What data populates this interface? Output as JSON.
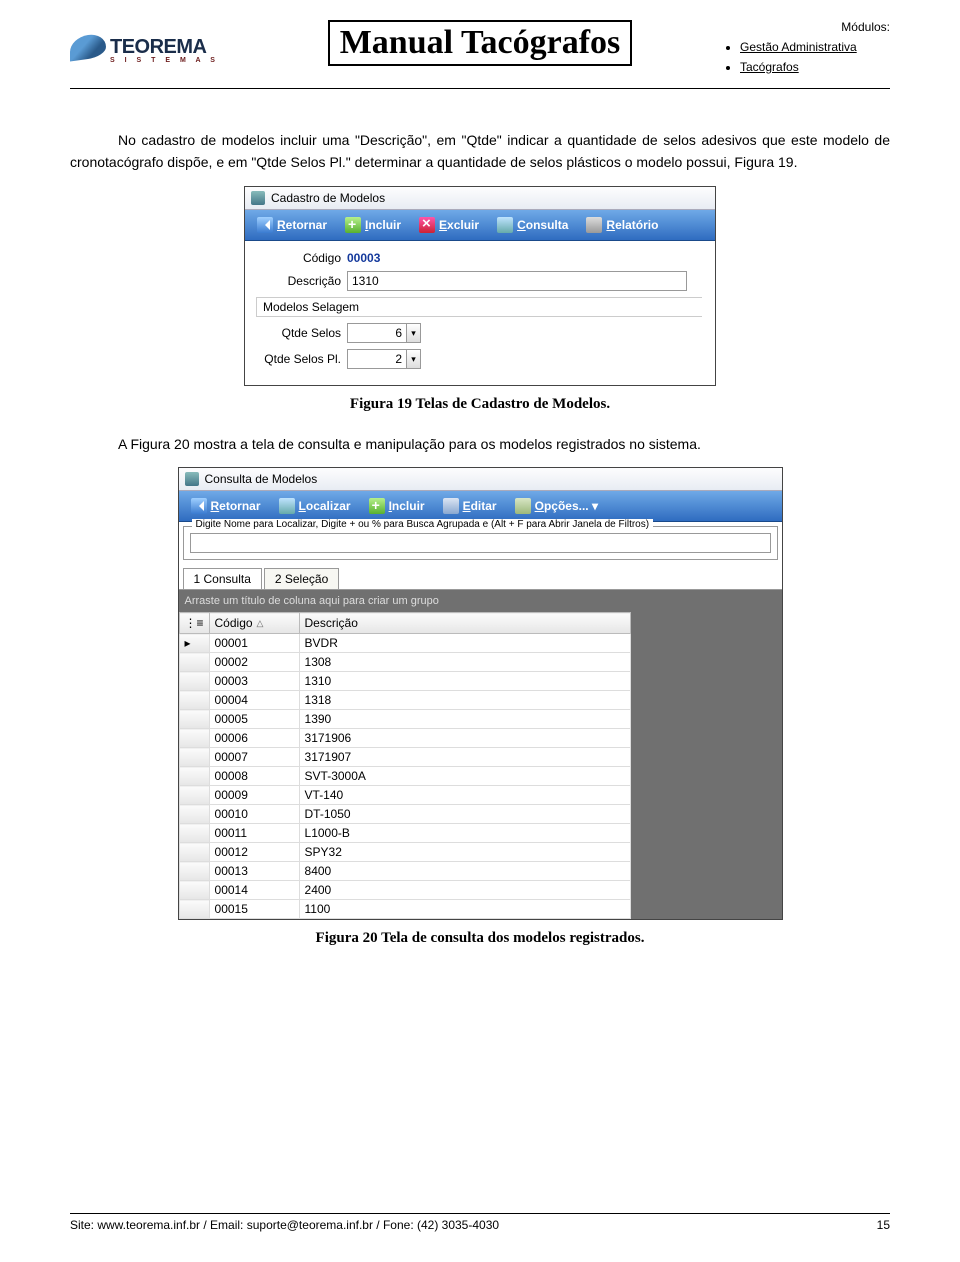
{
  "header": {
    "logo_brand": "TEOREMA",
    "logo_sub": "S  I  S  T  E  M  A  S",
    "title": "Manual Tacógrafos",
    "modulos_label": "Módulos:",
    "modulos": [
      "Gestão Administrativa",
      "Tacógrafos"
    ]
  },
  "para1": "No cadastro de modelos incluir uma \"Descrição\", em \"Qtde\" indicar a quantidade de selos adesivos que este modelo de cronotacógrafo dispõe, e em \"Qtde Selos Pl.\" determinar a quantidade de selos plásticos o modelo possui, Figura 19.",
  "fig19": {
    "window_title": "Cadastro de Modelos",
    "toolbar": {
      "retornar": "Retornar",
      "incluir": "Incluir",
      "excluir": "Excluir",
      "consulta": "Consulta",
      "relatorio": "Relatório"
    },
    "labels": {
      "codigo": "Código",
      "descricao": "Descrição",
      "group": "Modelos Selagem",
      "qselos": "Qtde Selos",
      "qselospl": "Qtde Selos Pl."
    },
    "values": {
      "codigo": "00003",
      "descricao": "1310",
      "qselos": "6",
      "qselospl": "2"
    }
  },
  "caption19": "Figura 19 Telas de Cadastro de Modelos.",
  "para2": "A Figura 20 mostra a tela de consulta e manipulação para os modelos registrados no sistema.",
  "fig20": {
    "window_title": "Consulta de Modelos",
    "toolbar": {
      "retornar": "Retornar",
      "localizar": "Localizar",
      "incluir": "Incluir",
      "editar": "Editar",
      "opcoes": "Opções..."
    },
    "filter_legend": "Digite Nome para Localizar, Digite + ou % para Busca Agrupada e (Alt + F para Abrir Janela de Filtros)",
    "tabs": [
      "1 Consulta",
      "2 Seleção"
    ],
    "group_hint": "Arraste um título de coluna aqui para criar um grupo",
    "columns": [
      "Código",
      "Descrição"
    ],
    "rows": [
      [
        "00001",
        "BVDR"
      ],
      [
        "00002",
        "1308"
      ],
      [
        "00003",
        "1310"
      ],
      [
        "00004",
        "1318"
      ],
      [
        "00005",
        "1390"
      ],
      [
        "00006",
        "3171906"
      ],
      [
        "00007",
        "3171907"
      ],
      [
        "00008",
        "SVT-3000A"
      ],
      [
        "00009",
        "VT-140"
      ],
      [
        "00010",
        "DT-1050"
      ],
      [
        "00011",
        "L1000-B"
      ],
      [
        "00012",
        "SPY32"
      ],
      [
        "00013",
        "8400"
      ],
      [
        "00014",
        "2400"
      ],
      [
        "00015",
        "1100"
      ]
    ]
  },
  "caption20": "Figura 20 Tela de consulta dos modelos registrados.",
  "footer": {
    "text": "Site: www.teorema.inf.br / Email: suporte@teorema.inf.br / Fone: (42) 3035-4030",
    "page": "15"
  }
}
